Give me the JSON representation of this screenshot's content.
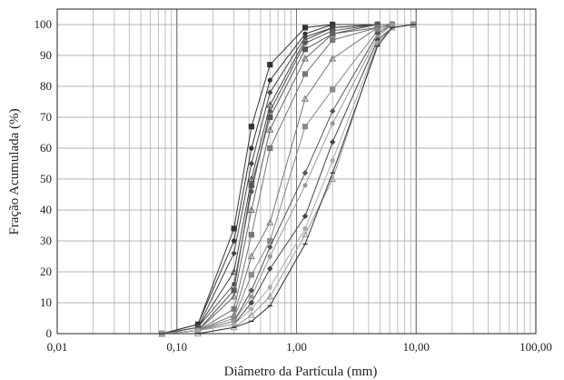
{
  "chart_data": {
    "type": "line",
    "title": "",
    "xlabel": "Diâmetro da Partícula (mm)",
    "ylabel": "Fração Acumulada (%)",
    "x_scale": "log",
    "xlim": [
      0.01,
      100
    ],
    "ylim": [
      0,
      105
    ],
    "x_tick_labels": [
      "0,01",
      "0,10",
      "1,00",
      "10,00",
      "100,00"
    ],
    "x_tick_values": [
      0.01,
      0.1,
      1,
      10,
      100
    ],
    "y_tick_values": [
      0,
      10,
      20,
      30,
      40,
      50,
      60,
      70,
      80,
      90,
      100
    ],
    "grid": true,
    "legend": "none",
    "x": [
      0.075,
      0.15,
      0.3,
      0.42,
      0.6,
      1.18,
      2.0,
      4.75,
      6.3,
      9.5
    ],
    "series": [
      {
        "color": "#333333",
        "marker": "square",
        "values": [
          0,
          3,
          34,
          67,
          87,
          99,
          100,
          100,
          100,
          100
        ]
      },
      {
        "color": "#333333",
        "marker": "circle",
        "values": [
          0,
          3,
          30,
          60,
          82,
          97,
          100,
          100,
          100,
          100
        ]
      },
      {
        "color": "#444444",
        "marker": "diamond",
        "values": [
          0,
          2,
          26,
          55,
          78,
          96,
          99,
          100,
          100,
          100
        ]
      },
      {
        "color": "#444444",
        "marker": "triangle",
        "values": [
          0,
          2,
          20,
          50,
          74,
          95,
          99,
          100,
          100,
          100
        ]
      },
      {
        "color": "#555555",
        "marker": "circle",
        "values": [
          0,
          2,
          16,
          46,
          72,
          94,
          98,
          100,
          100,
          100
        ]
      },
      {
        "color": "#555555",
        "marker": "square",
        "values": [
          0,
          1,
          14,
          48,
          70,
          92,
          97,
          100,
          100,
          100
        ]
      },
      {
        "color": "#666666",
        "marker": "triangle",
        "values": [
          0,
          1,
          12,
          40,
          66,
          89,
          97,
          99,
          100,
          100
        ]
      },
      {
        "color": "#777777",
        "marker": "square",
        "values": [
          0,
          1,
          8,
          32,
          60,
          84,
          95,
          99,
          100,
          100
        ]
      },
      {
        "color": "#777777",
        "marker": "triangle",
        "values": [
          0,
          1,
          6,
          25,
          36,
          76,
          89,
          99,
          100,
          100
        ]
      },
      {
        "color": "#888888",
        "marker": "square",
        "values": [
          0,
          1,
          5,
          19,
          30,
          67,
          79,
          98,
          100,
          100
        ]
      },
      {
        "color": "#555555",
        "marker": "diamond",
        "values": [
          0,
          1,
          4,
          14,
          28,
          52,
          72,
          97,
          100,
          100
        ]
      },
      {
        "color": "#999999",
        "marker": "circle",
        "values": [
          0,
          1,
          4,
          12,
          25,
          48,
          68,
          96,
          100,
          100
        ]
      },
      {
        "color": "#444444",
        "marker": "diamond",
        "values": [
          0,
          1,
          3,
          10,
          21,
          38,
          62,
          95,
          99,
          100
        ]
      },
      {
        "color": "#aaaaaa",
        "marker": "circle",
        "values": [
          0,
          1,
          3,
          8,
          15,
          34,
          56,
          94,
          99,
          100
        ]
      },
      {
        "color": "#999999",
        "marker": "triangle",
        "values": [
          0,
          0,
          2,
          6,
          12,
          32,
          50,
          94,
          99,
          100
        ]
      },
      {
        "color": "#333333",
        "marker": "dash",
        "values": [
          0,
          0,
          2,
          4,
          9,
          29,
          52,
          93,
          99,
          100
        ]
      }
    ]
  }
}
